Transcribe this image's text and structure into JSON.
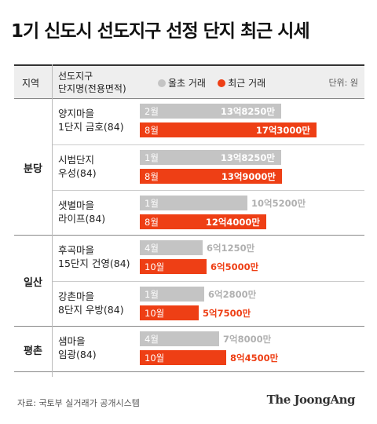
{
  "title": "1기 신도시 선도지구 선정 단지 최근 시세",
  "header": {
    "region": "지역",
    "complex_line1": "선도지구",
    "complex_line2": "단지명(전용면적)",
    "legend_past": "올초 거래",
    "legend_recent": "최근 거래",
    "unit": "단위: 원"
  },
  "colors": {
    "past": "#c4c4c4",
    "recent": "#ee3f15"
  },
  "chart_data": {
    "type": "bar",
    "title": "1기 신도시 선도지구 선정 단지 최근 시세",
    "unit": "원",
    "legend": [
      "올초 거래",
      "최근 거래"
    ],
    "series": [
      {
        "name": "올초 거래"
      },
      {
        "name": "최근 거래"
      }
    ],
    "max_value": 1800000000,
    "regions": [
      {
        "name": "분당",
        "complexes": [
          {
            "name_line1": "양지마을",
            "name_line2": "1단지 금호(84)",
            "past": {
              "month": "2월",
              "label": "13억8250만",
              "value": 1382500000
            },
            "recent": {
              "month": "8월",
              "label": "17억3000만",
              "value": 1730000000
            }
          },
          {
            "name_line1": "시범단지",
            "name_line2": "우성(84)",
            "past": {
              "month": "1월",
              "label": "13억8250만",
              "value": 1382500000
            },
            "recent": {
              "month": "8월",
              "label": "13억9000만",
              "value": 1390000000
            }
          },
          {
            "name_line1": "샛별마을",
            "name_line2": "라이프(84)",
            "past": {
              "month": "1월",
              "label": "10억5200만",
              "value": 1052000000
            },
            "recent": {
              "month": "8월",
              "label": "12억4000만",
              "value": 1240000000
            }
          }
        ]
      },
      {
        "name": "일산",
        "complexes": [
          {
            "name_line1": "후곡마을",
            "name_line2": "15단지 건영(84)",
            "past": {
              "month": "4월",
              "label": "6억1250만",
              "value": 612500000
            },
            "recent": {
              "month": "10월",
              "label": "6억5000만",
              "value": 650000000
            }
          },
          {
            "name_line1": "강촌마을",
            "name_line2": "8단지 우방(84)",
            "past": {
              "month": "1월",
              "label": "6억2800만",
              "value": 628000000
            },
            "recent": {
              "month": "10월",
              "label": "5억7500만",
              "value": 575000000
            }
          }
        ]
      },
      {
        "name": "평촌",
        "complexes": [
          {
            "name_line1": "샘마을",
            "name_line2": "임광(84)",
            "past": {
              "month": "4월",
              "label": "7억8000만",
              "value": 780000000
            },
            "recent": {
              "month": "10월",
              "label": "8억4500만",
              "value": 845000000
            }
          }
        ]
      }
    ]
  },
  "footer": {
    "source": "자료: 국토부 실거래가 공개시스템",
    "logo": "The JoongAng"
  }
}
